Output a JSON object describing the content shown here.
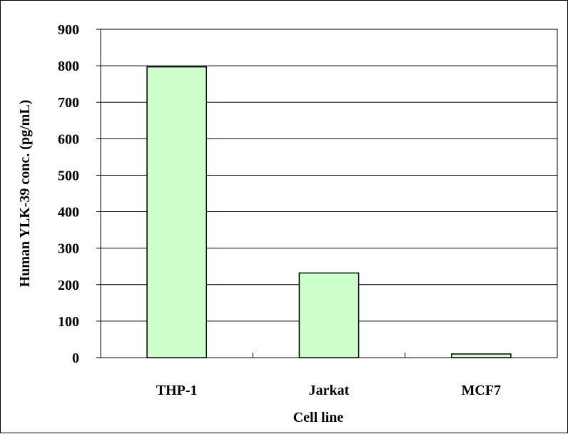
{
  "chart_data": {
    "type": "bar",
    "categories": [
      "THP-1",
      "Jarkat",
      "MCF7"
    ],
    "values": [
      797,
      232,
      10
    ],
    "ylabel": "Human YLK-39 conc. (pg/mL)",
    "xlabel": "Cell line",
    "ylim": [
      0,
      900
    ],
    "yticks": [
      0,
      100,
      200,
      300,
      400,
      500,
      600,
      700,
      800,
      900
    ],
    "grid": "horizontal",
    "legend": "none",
    "bar_color": "#ccffcc"
  }
}
